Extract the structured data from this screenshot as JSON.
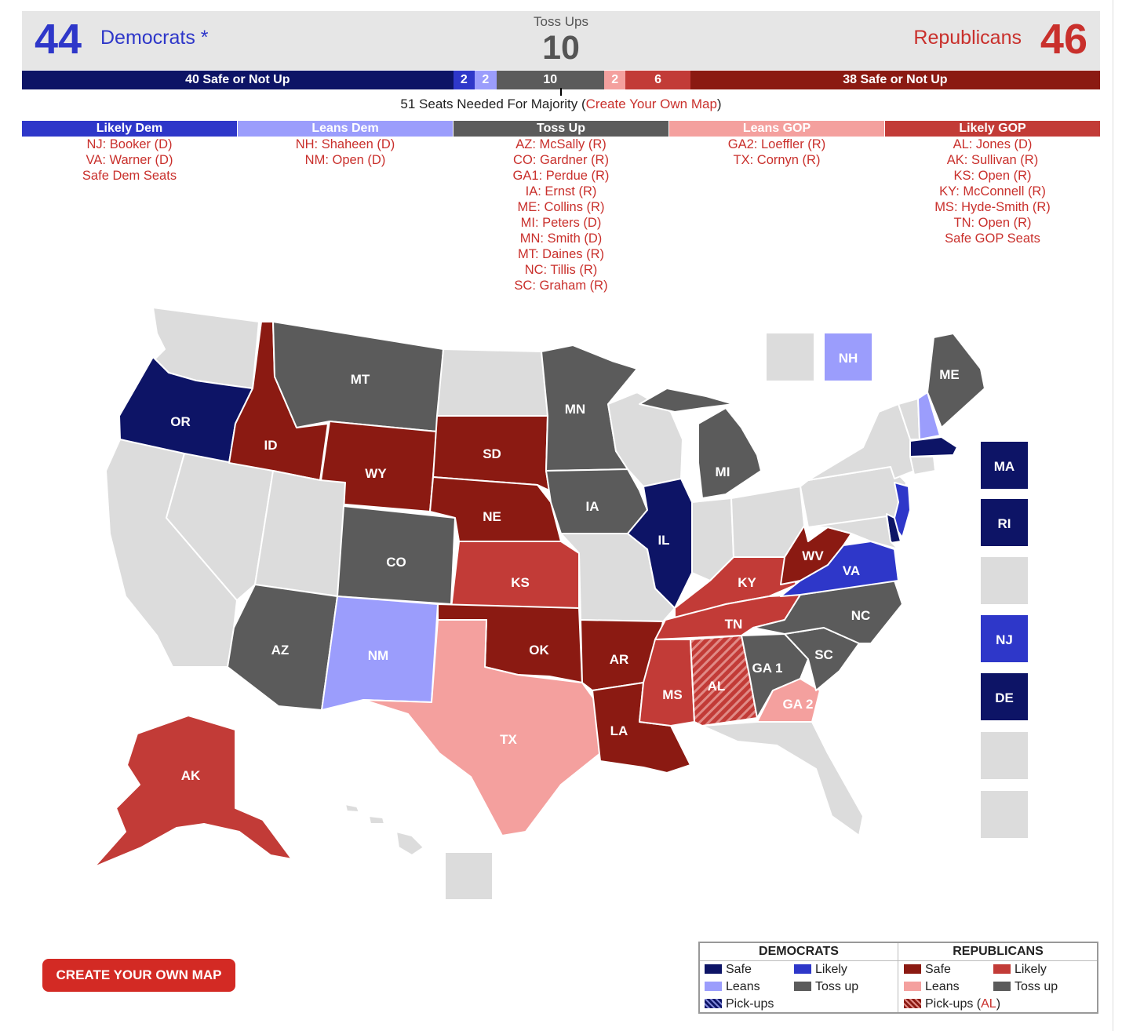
{
  "header": {
    "dem_seats": "44",
    "dem_label": "Democrats *",
    "rep_seats": "46",
    "rep_label": "Republicans",
    "toss_label": "Toss Ups",
    "toss_count": "10"
  },
  "seat_bar": [
    {
      "label": "40 Safe or Not Up",
      "seats": 40,
      "color": "#0d1466"
    },
    {
      "label": "2",
      "seats": 2,
      "color": "#2e37c9"
    },
    {
      "label": "2",
      "seats": 2,
      "color": "#9b9dfc"
    },
    {
      "label": "10",
      "seats": 10,
      "color": "#5b5b5b"
    },
    {
      "label": "2",
      "seats": 2,
      "color": "#f4a09e"
    },
    {
      "label": "6",
      "seats": 6,
      "color": "#c23b37"
    },
    {
      "label": "38 Safe or Not Up",
      "seats": 38,
      "color": "#8b1a12"
    }
  ],
  "majority": {
    "text": "51 Seats Needed For Majority (",
    "link": "Create Your Own Map",
    "close": ")"
  },
  "columns": [
    {
      "title": "Likely Dem",
      "color": "#2e37c9",
      "items": [
        "NJ: Booker (D)",
        "VA: Warner (D)",
        "Safe Dem Seats"
      ]
    },
    {
      "title": "Leans Dem",
      "color": "#9b9dfc",
      "items": [
        "NH: Shaheen (D)",
        "NM: Open (D)"
      ]
    },
    {
      "title": "Toss Up",
      "color": "#5b5b5b",
      "items": [
        "AZ: McSally (R)",
        "CO: Gardner (R)",
        "GA1: Perdue (R)",
        "IA: Ernst (R)",
        "ME: Collins (R)",
        "MI: Peters (D)",
        "MN: Smith (D)",
        "MT: Daines (R)",
        "NC: Tillis (R)",
        "SC: Graham (R)"
      ]
    },
    {
      "title": "Leans GOP",
      "color": "#f4a09e",
      "items": [
        "GA2: Loeffler (R)",
        "TX: Cornyn (R)"
      ]
    },
    {
      "title": "Likely GOP",
      "color": "#c23b37",
      "items": [
        "AL: Jones (D)",
        "AK: Sullivan (R)",
        "KS: Open (R)",
        "KY: McConnell (R)",
        "MS: Hyde-Smith (R)",
        "TN: Open (R)",
        "Safe GOP Seats"
      ]
    }
  ],
  "colors": {
    "safe_dem": "#0d1466",
    "likely_dem": "#2e37c9",
    "leans_dem": "#9b9dfc",
    "toss_up": "#5b5b5b",
    "leans_gop": "#f4a09e",
    "likely_gop": "#c23b37",
    "safe_gop": "#8b1a12",
    "not_up": "#dcdcdc"
  },
  "map": {
    "states": [
      {
        "abbr": "WA",
        "rating": "not_up",
        "label": ""
      },
      {
        "abbr": "OR",
        "rating": "safe_dem",
        "label": "OR"
      },
      {
        "abbr": "CA",
        "rating": "not_up",
        "label": ""
      },
      {
        "abbr": "NV",
        "rating": "not_up",
        "label": ""
      },
      {
        "abbr": "ID",
        "rating": "safe_gop",
        "label": "ID"
      },
      {
        "abbr": "MT",
        "rating": "toss_up",
        "label": "MT"
      },
      {
        "abbr": "WY",
        "rating": "safe_gop",
        "label": "WY"
      },
      {
        "abbr": "UT",
        "rating": "not_up",
        "label": ""
      },
      {
        "abbr": "AZ",
        "rating": "toss_up",
        "label": "AZ"
      },
      {
        "abbr": "CO",
        "rating": "toss_up",
        "label": "CO"
      },
      {
        "abbr": "NM",
        "rating": "leans_dem",
        "label": "NM"
      },
      {
        "abbr": "ND",
        "rating": "not_up",
        "label": ""
      },
      {
        "abbr": "SD",
        "rating": "safe_gop",
        "label": "SD"
      },
      {
        "abbr": "NE",
        "rating": "safe_gop",
        "label": "NE"
      },
      {
        "abbr": "KS",
        "rating": "likely_gop",
        "label": "KS"
      },
      {
        "abbr": "OK",
        "rating": "safe_gop",
        "label": "OK"
      },
      {
        "abbr": "TX",
        "rating": "leans_gop",
        "label": "TX"
      },
      {
        "abbr": "MN",
        "rating": "toss_up",
        "label": "MN"
      },
      {
        "abbr": "IA",
        "rating": "toss_up",
        "label": "IA"
      },
      {
        "abbr": "MO",
        "rating": "not_up",
        "label": ""
      },
      {
        "abbr": "AR",
        "rating": "safe_gop",
        "label": "AR"
      },
      {
        "abbr": "LA",
        "rating": "safe_gop",
        "label": "LA"
      },
      {
        "abbr": "WI",
        "rating": "not_up",
        "label": ""
      },
      {
        "abbr": "IL",
        "rating": "safe_dem",
        "label": "IL"
      },
      {
        "abbr": "MI",
        "rating": "toss_up",
        "label": "MI"
      },
      {
        "abbr": "IN",
        "rating": "not_up",
        "label": ""
      },
      {
        "abbr": "OH",
        "rating": "not_up",
        "label": ""
      },
      {
        "abbr": "KY",
        "rating": "likely_gop",
        "label": "KY"
      },
      {
        "abbr": "TN",
        "rating": "likely_gop",
        "label": "TN"
      },
      {
        "abbr": "MS",
        "rating": "likely_gop",
        "label": "MS"
      },
      {
        "abbr": "AL",
        "rating": "likely_gop_pickup",
        "label": "AL"
      },
      {
        "abbr": "GA",
        "rating": "toss_up",
        "label": "GA 1"
      },
      {
        "abbr": "GA2",
        "rating": "leans_gop",
        "label": "GA 2"
      },
      {
        "abbr": "FL",
        "rating": "not_up",
        "label": ""
      },
      {
        "abbr": "SC",
        "rating": "toss_up",
        "label": "SC"
      },
      {
        "abbr": "NC",
        "rating": "toss_up",
        "label": "NC"
      },
      {
        "abbr": "VA",
        "rating": "likely_dem",
        "label": "VA"
      },
      {
        "abbr": "WV",
        "rating": "safe_gop",
        "label": "WV"
      },
      {
        "abbr": "PA",
        "rating": "not_up",
        "label": ""
      },
      {
        "abbr": "NY",
        "rating": "not_up",
        "label": ""
      },
      {
        "abbr": "NJ",
        "rating": "likely_dem",
        "label": ""
      },
      {
        "abbr": "DE",
        "rating": "safe_dem",
        "label": ""
      },
      {
        "abbr": "MD",
        "rating": "not_up",
        "label": ""
      },
      {
        "abbr": "VT",
        "rating": "not_up",
        "label": ""
      },
      {
        "abbr": "NH",
        "rating": "leans_dem",
        "label": ""
      },
      {
        "abbr": "ME",
        "rating": "toss_up",
        "label": "ME"
      },
      {
        "abbr": "MA",
        "rating": "safe_dem",
        "label": ""
      },
      {
        "abbr": "CT",
        "rating": "not_up",
        "label": ""
      },
      {
        "abbr": "AK",
        "rating": "likely_gop",
        "label": "AK"
      },
      {
        "abbr": "HI",
        "rating": "not_up",
        "label": ""
      }
    ],
    "boxes": [
      {
        "label": "",
        "rating": "not_up"
      },
      {
        "label": "NH",
        "rating": "leans_dem"
      },
      {
        "label": "MA",
        "rating": "safe_dem"
      },
      {
        "label": "RI",
        "rating": "safe_dem"
      },
      {
        "label": "",
        "rating": "not_up"
      },
      {
        "label": "NJ",
        "rating": "likely_dem"
      },
      {
        "label": "DE",
        "rating": "safe_dem"
      },
      {
        "label": "",
        "rating": "not_up"
      },
      {
        "label": "",
        "rating": "not_up"
      },
      {
        "label": "",
        "rating": "not_up"
      }
    ]
  },
  "button": {
    "label": "CREATE YOUR OWN MAP"
  },
  "legend": {
    "dem_title": "DEMOCRATS",
    "rep_title": "REPUBLICANS",
    "safe": "Safe",
    "likely": "Likely",
    "leans": "Leans",
    "toss": "Toss up",
    "pickups": "Pick-ups",
    "rep_pickups_prefix": "Pick-ups (",
    "rep_pickups_state": "AL",
    "rep_pickups_suffix": ")"
  }
}
